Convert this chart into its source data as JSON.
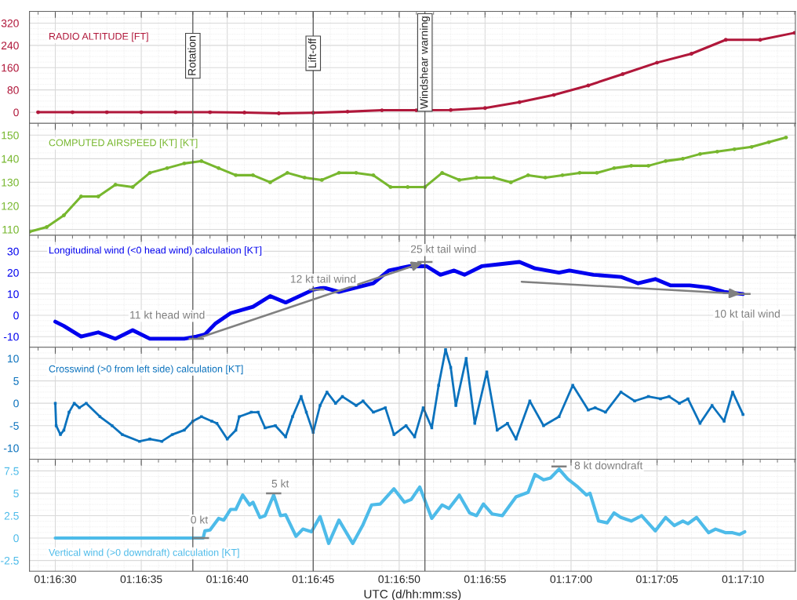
{
  "chart_data": [
    {
      "type": "line",
      "marker": "circle",
      "grid": true,
      "tick_labels": "y",
      "xlim": [
        1.274583,
        1.286958
      ],
      "ylim": [
        -40,
        362
      ],
      "yticks": [
        0,
        80,
        160,
        240,
        320
      ],
      "xticks": [
        {
          "value": 1.275,
          "label": null
        },
        {
          "value": 1.276389,
          "label": null
        },
        {
          "value": 1.277778,
          "label": null
        },
        {
          "value": 1.279167,
          "label": null
        },
        {
          "value": 1.280556,
          "label": null
        },
        {
          "value": 1.281944,
          "label": null
        },
        {
          "value": 1.283333,
          "label": null
        },
        {
          "value": 1.284722,
          "label": null
        },
        {
          "value": 1.286111,
          "label": null
        }
      ],
      "ref_lines": [
        {
          "axis": "x",
          "value": 1.277222,
          "label": "Rotation"
        },
        {
          "axis": "x",
          "value": 1.279167,
          "label": "Lift-off"
        },
        {
          "axis": "x",
          "value": 1.280972,
          "label": "Windshear warning"
        }
      ],
      "series": [
        {
          "name": "RADIO ALTITUDE [FT]",
          "color": "#b0173a",
          "x": [
            1.274722,
            1.275278,
            1.275833,
            1.276389,
            1.276944,
            1.2775,
            1.278056,
            1.278611,
            1.279167,
            1.279722,
            1.280278,
            1.280833,
            1.281389,
            1.281944,
            1.2825,
            1.283056,
            1.283611,
            1.284167,
            1.284722,
            1.285278,
            1.285833,
            1.286389,
            1.286944
          ],
          "values": [
            0,
            0,
            0,
            0,
            0,
            0,
            -1,
            -4,
            -2,
            2,
            7,
            7,
            8,
            15,
            36,
            62,
            96,
            137,
            178,
            210,
            260,
            260,
            285
          ]
        }
      ]
    },
    {
      "type": "line",
      "marker": "circle",
      "grid": true,
      "tick_labels": "y",
      "xlim": [
        1.274583,
        1.286958
      ],
      "ylim": [
        107.5,
        155
      ],
      "yticks": [
        110,
        120,
        130,
        140,
        150
      ],
      "xticks": [
        {
          "value": 1.275,
          "label": null
        },
        {
          "value": 1.276389,
          "label": null
        },
        {
          "value": 1.277778,
          "label": null
        },
        {
          "value": 1.279167,
          "label": null
        },
        {
          "value": 1.280556,
          "label": null
        },
        {
          "value": 1.281944,
          "label": null
        },
        {
          "value": 1.283333,
          "label": null
        },
        {
          "value": 1.284722,
          "label": null
        },
        {
          "value": 1.286111,
          "label": null
        }
      ],
      "ref_lines": [
        {
          "axis": "x",
          "value": 1.277222
        },
        {
          "axis": "x",
          "value": 1.279167
        },
        {
          "axis": "x",
          "value": 1.280972
        }
      ],
      "series": [
        {
          "name": "COMPUTED AIRSPEED [KT] [KT]",
          "color": "#77b72e",
          "x": [
            1.274583,
            1.274861,
            1.275139,
            1.275417,
            1.275694,
            1.275972,
            1.27625,
            1.276528,
            1.276806,
            1.277083,
            1.277361,
            1.277639,
            1.277917,
            1.278194,
            1.278472,
            1.27875,
            1.279028,
            1.279306,
            1.279583,
            1.279861,
            1.280139,
            1.280417,
            1.280694,
            1.280972,
            1.28125,
            1.281528,
            1.281806,
            1.282083,
            1.282361,
            1.282639,
            1.282917,
            1.283194,
            1.283472,
            1.28375,
            1.284028,
            1.284306,
            1.284583,
            1.284861,
            1.285139,
            1.285417,
            1.285694,
            1.285972,
            1.28625,
            1.286528,
            1.286806
          ],
          "values": [
            109,
            111,
            116,
            124,
            124,
            129,
            128,
            134,
            136,
            138,
            139,
            136,
            133,
            133,
            130,
            134,
            132,
            131,
            134,
            134,
            133,
            128,
            128,
            128,
            134,
            131,
            132,
            132,
            130,
            133,
            132,
            133,
            134,
            134,
            136,
            137,
            137,
            139,
            140,
            142,
            143,
            144,
            145,
            147,
            149
          ]
        }
      ]
    },
    {
      "type": "line",
      "grid": true,
      "tick_labels": "y",
      "xlim": [
        1.274583,
        1.286958
      ],
      "ylim": [
        -15,
        37.5
      ],
      "yticks": [
        -10,
        0,
        10,
        20,
        30
      ],
      "xticks": [
        {
          "value": 1.275,
          "label": null
        },
        {
          "value": 1.276389,
          "label": null
        },
        {
          "value": 1.277778,
          "label": null
        },
        {
          "value": 1.279167,
          "label": null
        },
        {
          "value": 1.280556,
          "label": null
        },
        {
          "value": 1.281944,
          "label": null
        },
        {
          "value": 1.283333,
          "label": null
        },
        {
          "value": 1.284722,
          "label": null
        },
        {
          "value": 1.286111,
          "label": null
        }
      ],
      "ref_lines": [
        {
          "axis": "x",
          "value": 1.277222
        },
        {
          "axis": "x",
          "value": 1.279167
        },
        {
          "axis": "x",
          "value": 1.280972
        }
      ],
      "annotations": [
        {
          "text": "11 kt head wind",
          "x": 1.277278,
          "y": -11
        },
        {
          "text": "12 kt tail wind",
          "x": 1.279222,
          "y": 12
        },
        {
          "text": "25 kt tail wind",
          "x": 1.280972,
          "y": 25
        },
        {
          "text": "10 kt tail wind",
          "x": 1.286111,
          "y": 10
        }
      ],
      "series": [
        {
          "name": "Longitudinal wind (<0 head wind) calculation [KT]",
          "color": "#0000ee",
          "x": [
            1.275,
            1.275139,
            1.275417,
            1.275694,
            1.275972,
            1.27625,
            1.276528,
            1.277083,
            1.277278,
            1.277417,
            1.277583,
            1.277833,
            1.278194,
            1.278472,
            1.278722,
            1.279167,
            1.279333,
            1.279583,
            1.279861,
            1.280139,
            1.280389,
            1.280722,
            1.281,
            1.281222,
            1.281444,
            1.281611,
            1.281889,
            1.282194,
            1.2825,
            1.28275,
            1.283139,
            1.283306,
            1.283694,
            1.284139,
            1.284417,
            1.284694,
            1.284944,
            1.28525,
            1.285556,
            1.285806,
            1.286111
          ],
          "values": [
            -3,
            -5,
            -10,
            -8,
            -11,
            -7,
            -11,
            -11,
            -10,
            -9,
            -4,
            1,
            4,
            9,
            6,
            12,
            13,
            11,
            13,
            15,
            21,
            23,
            23,
            19,
            21,
            19,
            23,
            24,
            25,
            22,
            20,
            21,
            19,
            18,
            15,
            17,
            14,
            14,
            13,
            11,
            10
          ]
        }
      ]
    },
    {
      "type": "line",
      "marker": "square",
      "grid": true,
      "tick_labels": "y",
      "xlim": [
        1.274583,
        1.286958
      ],
      "ylim": [
        -12.5,
        12.5
      ],
      "yticks": [
        -10,
        -5,
        0,
        5,
        10
      ],
      "xticks": [
        {
          "value": 1.275,
          "label": null
        },
        {
          "value": 1.276389,
          "label": null
        },
        {
          "value": 1.277778,
          "label": null
        },
        {
          "value": 1.279167,
          "label": null
        },
        {
          "value": 1.280556,
          "label": null
        },
        {
          "value": 1.281944,
          "label": null
        },
        {
          "value": 1.283333,
          "label": null
        },
        {
          "value": 1.284722,
          "label": null
        },
        {
          "value": 1.286111,
          "label": null
        }
      ],
      "ref_lines": [
        {
          "axis": "x",
          "value": 1.277222
        },
        {
          "axis": "x",
          "value": 1.279167
        },
        {
          "axis": "x",
          "value": 1.280972
        }
      ],
      "series": [
        {
          "name": "Crosswind (>0 from left side) calculation [KT]",
          "color": "#0b72bd",
          "x": [
            1.275,
            1.275014,
            1.275083,
            1.275139,
            1.275222,
            1.275306,
            1.275389,
            1.2755,
            1.275722,
            1.275917,
            1.276083,
            1.276361,
            1.276528,
            1.276722,
            1.276889,
            1.277083,
            1.277222,
            1.277361,
            1.277528,
            1.277611,
            1.277778,
            1.277917,
            1.277972,
            1.278167,
            1.278278,
            1.278389,
            1.278556,
            1.278722,
            1.278833,
            1.278972,
            1.279056,
            1.279167,
            1.279278,
            1.279389,
            1.279528,
            1.279639,
            1.279861,
            1.279972,
            1.280139,
            1.280333,
            1.280472,
            1.280667,
            1.280806,
            1.280944,
            1.281083,
            1.281194,
            1.281306,
            1.281389,
            1.281472,
            1.281639,
            1.281778,
            1.281972,
            1.282139,
            1.282306,
            1.282444,
            1.282667,
            1.282889,
            1.283139,
            1.283361,
            1.283611,
            1.283722,
            1.283889,
            1.284139,
            1.284361,
            1.284583,
            1.284778,
            1.284917,
            1.285083,
            1.285222,
            1.285417,
            1.285611,
            1.285806,
            1.285944,
            1.286111
          ],
          "values": [
            0,
            -5,
            -7,
            -6,
            -2,
            0,
            -1,
            0,
            -3,
            -5,
            -7,
            -8.5,
            -8,
            -8.5,
            -7,
            -6,
            -4,
            -3,
            -4,
            -4.5,
            -8,
            -6,
            -3,
            -2,
            -2,
            -5.5,
            -5,
            -7.5,
            -3,
            1.5,
            -2,
            -6.5,
            -0.5,
            2.5,
            0,
            1.5,
            -0.5,
            0.5,
            -2,
            -1,
            -7,
            -5,
            -7.5,
            -1,
            -5.5,
            4,
            12,
            8,
            -0.5,
            10,
            -4.5,
            7,
            -6,
            -4.5,
            -8,
            0.5,
            -5,
            -3,
            4,
            -1.5,
            -1,
            -2,
            2.5,
            0.5,
            1.5,
            1,
            1.5,
            0,
            1,
            -4.5,
            -0.5,
            -4,
            2.5,
            -2.5
          ]
        }
      ]
    },
    {
      "type": "line",
      "grid": true,
      "xlim": [
        1.274583,
        1.286958
      ],
      "ylim": [
        -3.7,
        8.8
      ],
      "yticks": [
        {
          "value": -2.5,
          "label": "-2.5"
        },
        0,
        2.5,
        5,
        7.5
      ],
      "xlabel": "UTC (d/hh:mm:ss)",
      "xticks": [
        {
          "value": 1.275,
          "label": "01:16:30"
        },
        {
          "value": 1.276389,
          "label": "01:16:35"
        },
        {
          "value": 1.277778,
          "label": "01:16:40"
        },
        {
          "value": 1.279167,
          "label": "01:16:45"
        },
        {
          "value": 1.280556,
          "label": "01:16:50"
        },
        {
          "value": 1.281944,
          "label": "01:16:55"
        },
        {
          "value": 1.283333,
          "label": "01:17:00"
        },
        {
          "value": 1.284722,
          "label": "01:17:05"
        },
        {
          "value": 1.286111,
          "label": "01:17:10"
        }
      ],
      "ref_lines": [
        {
          "axis": "x",
          "value": 1.277222
        },
        {
          "axis": "x",
          "value": 1.279167
        },
        {
          "axis": "x",
          "value": 1.280972
        }
      ],
      "annotations": [
        {
          "text": "0 kt",
          "x": 1.277361,
          "y": 0
        },
        {
          "text": "5 kt",
          "x": 1.278528,
          "y": 5
        },
        {
          "text": "8 kt downdraft",
          "x": 1.283139,
          "y": 8
        }
      ],
      "series": [
        {
          "name": "Vertical wind (>0 downdraft) calculation [KT]",
          "color": "#4dbbe9",
          "x": [
            1.275,
            1.277389,
            1.277417,
            1.2775,
            1.277639,
            1.277722,
            1.277833,
            1.277917,
            1.278028,
            1.278139,
            1.278194,
            1.278306,
            1.278389,
            1.278528,
            1.278639,
            1.278722,
            1.278889,
            1.279,
            1.279139,
            1.279278,
            1.279417,
            1.279583,
            1.279806,
            1.279972,
            1.280111,
            1.28025,
            1.280472,
            1.280639,
            1.28075,
            1.280889,
            1.281083,
            1.28125,
            1.281361,
            1.281528,
            1.281694,
            1.281806,
            1.281917,
            1.282056,
            1.282222,
            1.282444,
            1.282639,
            1.28275,
            1.282889,
            1.283,
            1.283139,
            1.283278,
            1.283444,
            1.283583,
            1.283639,
            1.283778,
            1.283917,
            1.284028,
            1.284139,
            1.284306,
            1.284472,
            1.284694,
            1.284861,
            1.285,
            1.285139,
            1.285222,
            1.285361,
            1.285556,
            1.285667,
            1.285833,
            1.285944,
            1.286056,
            1.286139
          ],
          "values": [
            0,
            0,
            0.8,
            0.9,
            2.2,
            2.0,
            3.2,
            3.2,
            4.8,
            3.7,
            4.0,
            2.3,
            2.5,
            4.8,
            2.5,
            2.6,
            0.2,
            1.0,
            0.7,
            2.4,
            -0.6,
            2.0,
            -0.6,
            1.5,
            3.7,
            3.8,
            5.5,
            4.0,
            4.3,
            5.7,
            2.2,
            3.7,
            3.3,
            4.8,
            2.8,
            2.5,
            3.8,
            2.7,
            2.5,
            4.6,
            5.1,
            7.1,
            6.5,
            6.7,
            7.7,
            6.6,
            5.7,
            4.8,
            5.0,
            1.9,
            1.7,
            2.8,
            2.3,
            1.9,
            2.5,
            0.8,
            2.3,
            1.4,
            1.9,
            1.6,
            2.3,
            0.6,
            1.0,
            0.6,
            0.6,
            0.4,
            0.7
          ]
        }
      ]
    }
  ]
}
